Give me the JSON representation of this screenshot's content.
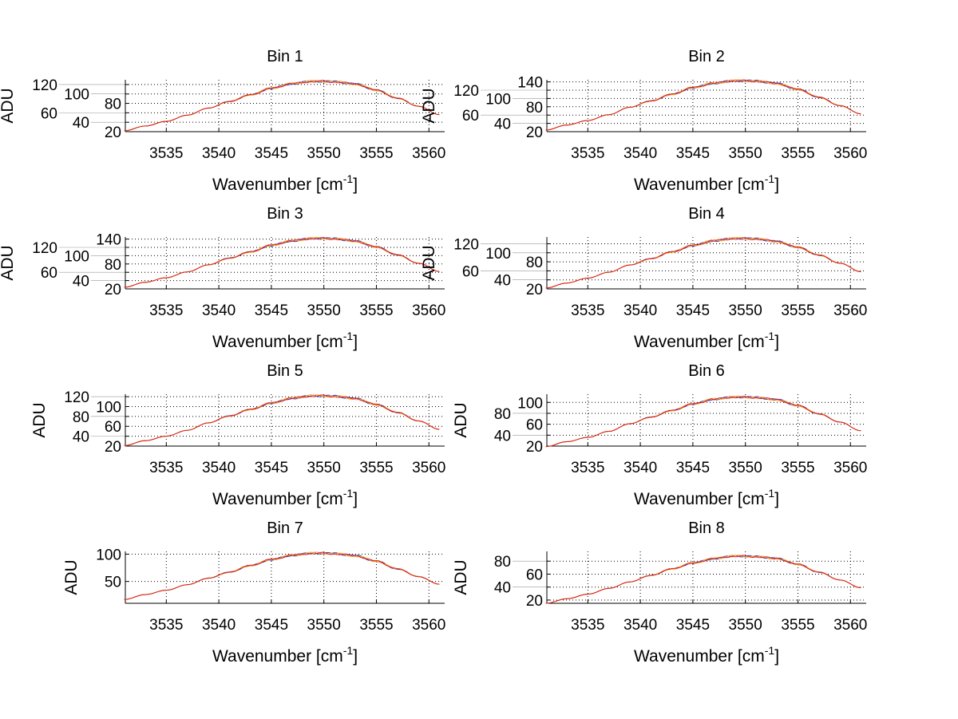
{
  "chart_data": {
    "type": "line",
    "layout": "4x2 grid",
    "grid": true,
    "x": [
      3531,
      3533,
      3535,
      3537,
      3539,
      3541,
      3543,
      3545,
      3547,
      3549,
      3551,
      3553,
      3555,
      3557,
      3559,
      3561
    ],
    "xlim": [
      3531.1,
      3561.5
    ],
    "xticks": [
      3535,
      3540,
      3545,
      3550,
      3555,
      3560
    ],
    "colors": [
      "#3040c0",
      "#ffa020",
      "#e02010"
    ],
    "panels": [
      {
        "title": "Bin 1",
        "xlabel": "Wavenumber [cm",
        "xlabel_sup": "-1",
        "xlabel_end": "]",
        "ylabel": "ADU",
        "ylim": [
          20,
          130
        ],
        "yticks": [
          20,
          40,
          60,
          80,
          100,
          120
        ],
        "values": [
          22,
          32,
          42,
          55,
          70,
          84,
          98,
          112,
          122,
          127,
          126,
          121,
          108,
          91,
          74,
          56
        ]
      },
      {
        "title": "Bin 2",
        "xlabel": "Wavenumber [cm",
        "xlabel_sup": "-1",
        "xlabel_end": "]",
        "ylabel": "ADU",
        "ylim": [
          20,
          145
        ],
        "yticks": [
          20,
          40,
          60,
          80,
          100,
          120,
          140
        ],
        "values": [
          24,
          36,
          47,
          61,
          79,
          94,
          110,
          126,
          137,
          143,
          142,
          136,
          122,
          103,
          83,
          63
        ]
      },
      {
        "title": "Bin 3",
        "xlabel": "Wavenumber [cm",
        "xlabel_sup": "-1",
        "xlabel_end": "]",
        "ylabel": "ADU",
        "ylim": [
          20,
          145
        ],
        "yticks": [
          20,
          40,
          60,
          80,
          100,
          120,
          140
        ],
        "values": [
          24,
          36,
          47,
          61,
          78,
          94,
          109,
          125,
          136,
          142,
          141,
          135,
          121,
          102,
          82,
          62
        ]
      },
      {
        "title": "Bin 4",
        "xlabel": "Wavenumber [cm",
        "xlabel_sup": "-1",
        "xlabel_end": "]",
        "ylabel": "ADU",
        "ylim": [
          20,
          135
        ],
        "yticks": [
          20,
          40,
          60,
          80,
          100,
          120
        ],
        "values": [
          22,
          33,
          44,
          57,
          73,
          87,
          102,
          116,
          127,
          132,
          131,
          125,
          112,
          95,
          77,
          58
        ]
      },
      {
        "title": "Bin 5",
        "xlabel": "Wavenumber [cm",
        "xlabel_sup": "-1",
        "xlabel_end": "]",
        "ylabel": "ADU",
        "ylim": [
          20,
          125
        ],
        "yticks": [
          20,
          40,
          60,
          80,
          100,
          120
        ],
        "values": [
          21,
          31,
          40,
          52,
          67,
          81,
          94,
          107,
          117,
          122,
          121,
          116,
          104,
          88,
          71,
          54
        ]
      },
      {
        "title": "Bin 6",
        "xlabel": "Wavenumber [cm",
        "xlabel_sup": "-1",
        "xlabel_end": "]",
        "ylabel": "ADU",
        "ylim": [
          20,
          115
        ],
        "yticks": [
          20,
          40,
          60,
          80,
          100
        ],
        "values": [
          19,
          28,
          36,
          47,
          61,
          73,
          85,
          97,
          106,
          110,
          109,
          105,
          94,
          79,
          64,
          48
        ]
      },
      {
        "title": "Bin 7",
        "xlabel": "Wavenumber [cm",
        "xlabel_sup": "-1",
        "xlabel_end": "]",
        "ylabel": "ADU",
        "ylim": [
          10,
          105
        ],
        "yticks": [
          50,
          100
        ],
        "values": [
          17,
          26,
          34,
          44,
          56,
          67,
          79,
          90,
          98,
          102,
          101,
          97,
          87,
          73,
          59,
          45
        ]
      },
      {
        "title": "Bin 8",
        "xlabel": "Wavenumber [cm",
        "xlabel_sup": "-1",
        "xlabel_end": "]",
        "ylabel": "ADU",
        "ylim": [
          15,
          95
        ],
        "yticks": [
          20,
          40,
          60,
          80
        ],
        "values": [
          15,
          22,
          29,
          38,
          48,
          58,
          68,
          77,
          84,
          88,
          87,
          84,
          75,
          63,
          51,
          39
        ]
      }
    ]
  }
}
